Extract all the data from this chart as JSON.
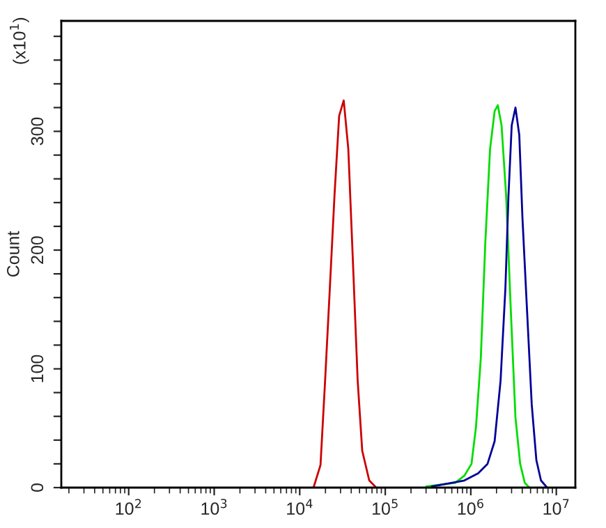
{
  "chart_data": {
    "type": "line",
    "ylabel": "Count",
    "annotations": [
      "(x10$^{1}$)"
    ],
    "log": "x",
    "grid": false,
    "marker": "none",
    "line_style": "solid",
    "xlim": [
      16.3,
      16700000
    ],
    "ylim": [
      0,
      393
    ],
    "xticks": [
      {
        "value": 100,
        "label": "10$^{2}$"
      },
      {
        "value": 1000,
        "label": "10$^{3}$"
      },
      {
        "value": 10000,
        "label": "10$^{4}$"
      },
      {
        "value": 100000,
        "label": "10$^{5}$"
      },
      {
        "value": 1000000,
        "label": "10$^{6}$"
      },
      {
        "value": 10000000,
        "label": "10$^{7}$"
      }
    ],
    "yticks": [
      0,
      {
        "value": 20,
        "label": null
      },
      {
        "value": 40,
        "label": null
      },
      {
        "value": 60,
        "label": null
      },
      {
        "value": 80,
        "label": null
      },
      100,
      {
        "value": 120,
        "label": null
      },
      {
        "value": 140,
        "label": null
      },
      {
        "value": 160,
        "label": null
      },
      {
        "value": 180,
        "label": null
      },
      200,
      {
        "value": 220,
        "label": null
      },
      {
        "value": 240,
        "label": null
      },
      {
        "value": 260,
        "label": null
      },
      {
        "value": 280,
        "label": null
      },
      300,
      {
        "value": 320,
        "label": null
      },
      {
        "value": 340,
        "label": null
      },
      {
        "value": 360,
        "label": null
      },
      {
        "value": 380,
        "label": null
      }
    ],
    "series": [
      {
        "color": "#cc0000",
        "x": [
          14500,
          17500,
          19800,
          22500,
          25500,
          28900,
          32700,
          37000,
          42000,
          47600,
          53800,
          65000,
          78300
        ],
        "values": [
          0,
          19,
          90,
          168,
          246,
          313,
          326,
          285,
          188,
          90,
          31,
          6,
          0
        ]
      },
      {
        "color": "#00dd00",
        "x": [
          302000,
          658000,
          841000,
          1020000,
          1150000,
          1310000,
          1480000,
          1680000,
          1900000,
          2070000,
          2290000,
          2590000,
          2940000,
          3330000,
          3780000,
          4280000,
          4850000
        ],
        "values": [
          1,
          4,
          10,
          20,
          51,
          109,
          207,
          285,
          317,
          322,
          305,
          246,
          149,
          59,
          20,
          4,
          0
        ]
      },
      {
        "color": "#000099",
        "x": [
          351000,
          841000,
          1220000,
          1570000,
          1900000,
          2230000,
          2540000,
          2760000,
          3010000,
          3330000,
          3690000,
          4020000,
          4550000,
          5160000,
          5850000,
          6620000,
          7800000
        ],
        "values": [
          1,
          6,
          12,
          20,
          39,
          90,
          168,
          246,
          305,
          320,
          297,
          227,
          149,
          70,
          23,
          6,
          0
        ]
      }
    ]
  }
}
